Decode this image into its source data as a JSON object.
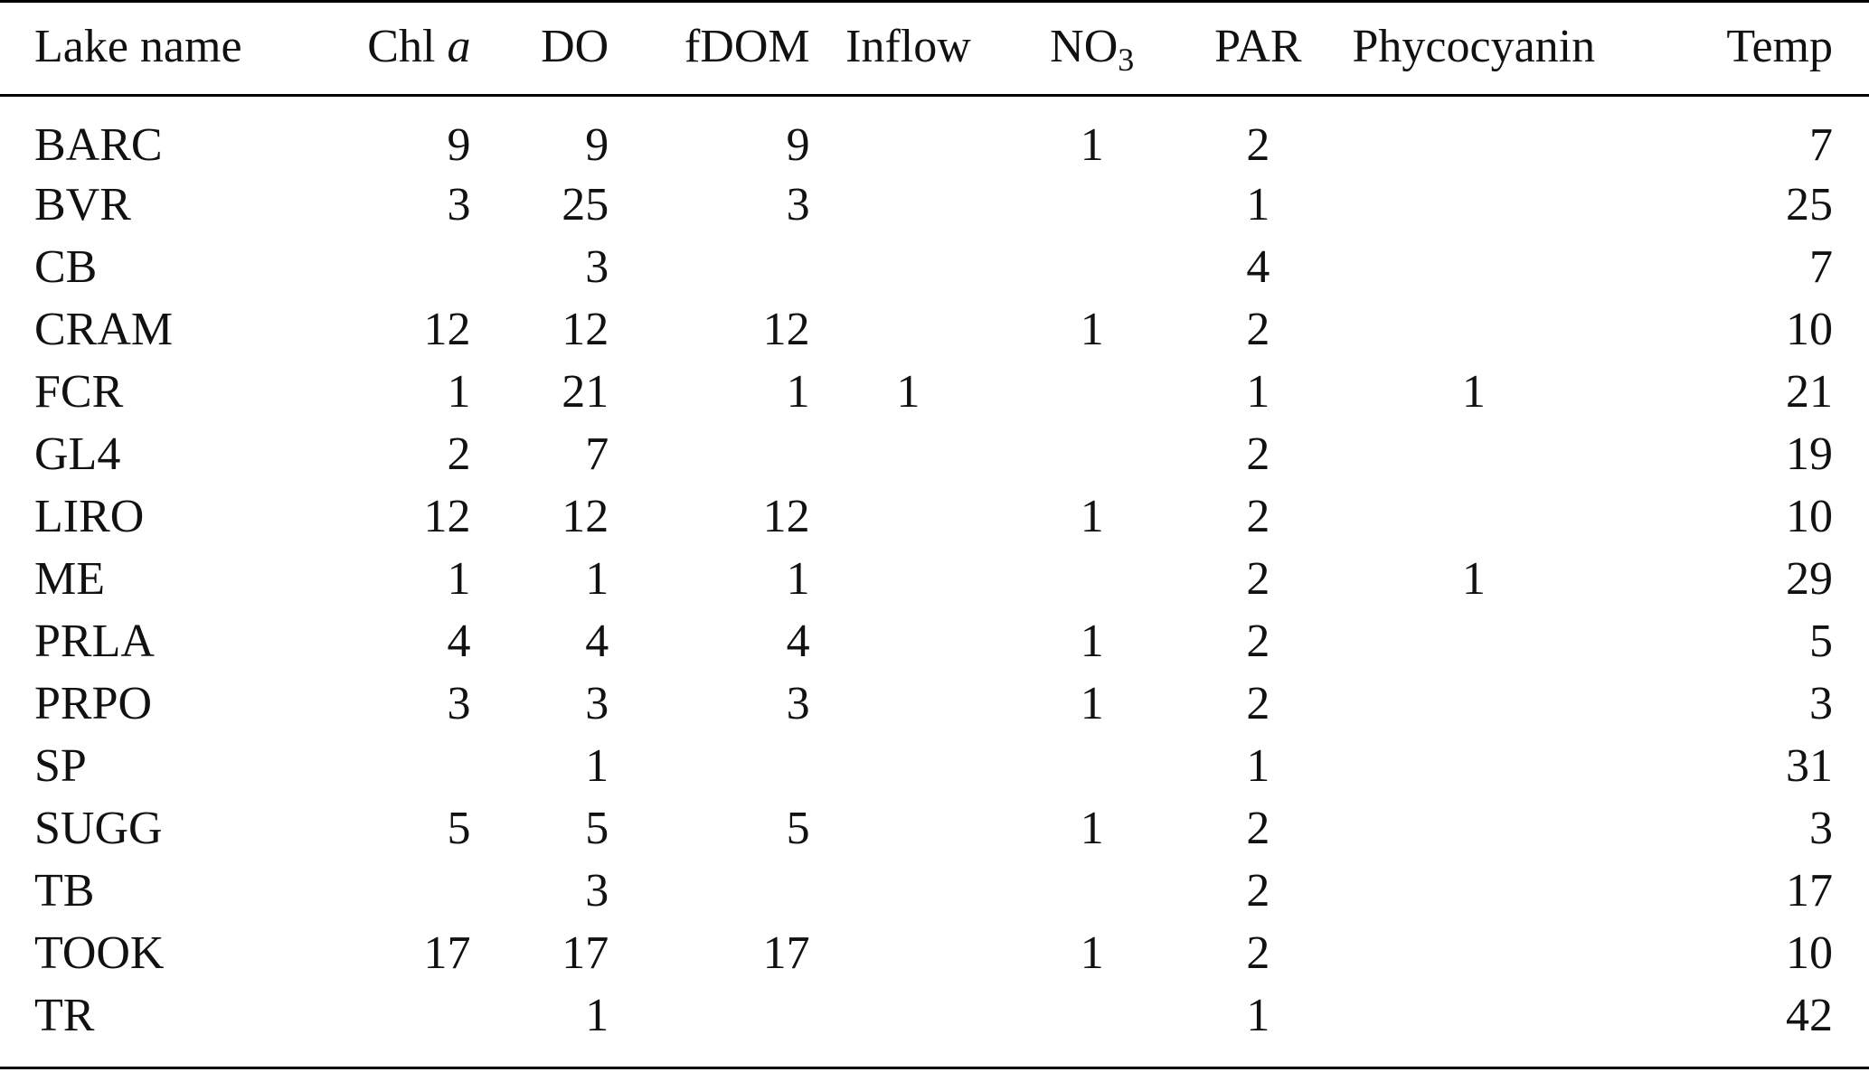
{
  "table": {
    "headers": {
      "lake_name": "Lake name",
      "chl_main": "Chl",
      "chl_italic": "a",
      "do": "DO",
      "fdom": "fDOM",
      "inflow": "Inflow",
      "no3_main": "NO",
      "no3_sub": "3",
      "par": "PAR",
      "phycocyanin": "Phycocyanin",
      "temp": "Temp"
    },
    "rows": [
      {
        "lake": "BARC",
        "chl": "9",
        "do": "9",
        "fdom": "9",
        "inflow": "",
        "no3": "1",
        "par": "2",
        "phyco": "",
        "temp": "7"
      },
      {
        "lake": "BVR",
        "chl": "3",
        "do": "25",
        "fdom": "3",
        "inflow": "",
        "no3": "",
        "par": "1",
        "phyco": "",
        "temp": "25"
      },
      {
        "lake": "CB",
        "chl": "",
        "do": "3",
        "fdom": "",
        "inflow": "",
        "no3": "",
        "par": "4",
        "phyco": "",
        "temp": "7"
      },
      {
        "lake": "CRAM",
        "chl": "12",
        "do": "12",
        "fdom": "12",
        "inflow": "",
        "no3": "1",
        "par": "2",
        "phyco": "",
        "temp": "10"
      },
      {
        "lake": "FCR",
        "chl": "1",
        "do": "21",
        "fdom": "1",
        "inflow": "1",
        "no3": "",
        "par": "1",
        "phyco": "1",
        "temp": "21"
      },
      {
        "lake": "GL4",
        "chl": "2",
        "do": "7",
        "fdom": "",
        "inflow": "",
        "no3": "",
        "par": "2",
        "phyco": "",
        "temp": "19"
      },
      {
        "lake": "LIRO",
        "chl": "12",
        "do": "12",
        "fdom": "12",
        "inflow": "",
        "no3": "1",
        "par": "2",
        "phyco": "",
        "temp": "10"
      },
      {
        "lake": "ME",
        "chl": "1",
        "do": "1",
        "fdom": "1",
        "inflow": "",
        "no3": "",
        "par": "2",
        "phyco": "1",
        "temp": "29"
      },
      {
        "lake": "PRLA",
        "chl": "4",
        "do": "4",
        "fdom": "4",
        "inflow": "",
        "no3": "1",
        "par": "2",
        "phyco": "",
        "temp": "5"
      },
      {
        "lake": "PRPO",
        "chl": "3",
        "do": "3",
        "fdom": "3",
        "inflow": "",
        "no3": "1",
        "par": "2",
        "phyco": "",
        "temp": "3"
      },
      {
        "lake": "SP",
        "chl": "",
        "do": "1",
        "fdom": "",
        "inflow": "",
        "no3": "",
        "par": "1",
        "phyco": "",
        "temp": "31"
      },
      {
        "lake": "SUGG",
        "chl": "5",
        "do": "5",
        "fdom": "5",
        "inflow": "",
        "no3": "1",
        "par": "2",
        "phyco": "",
        "temp": "3"
      },
      {
        "lake": "TB",
        "chl": "",
        "do": "3",
        "fdom": "",
        "inflow": "",
        "no3": "",
        "par": "2",
        "phyco": "",
        "temp": "17"
      },
      {
        "lake": "TOOK",
        "chl": "17",
        "do": "17",
        "fdom": "17",
        "inflow": "",
        "no3": "1",
        "par": "2",
        "phyco": "",
        "temp": "10"
      },
      {
        "lake": "TR",
        "chl": "",
        "do": "1",
        "fdom": "",
        "inflow": "",
        "no3": "",
        "par": "1",
        "phyco": "",
        "temp": "42"
      }
    ]
  }
}
